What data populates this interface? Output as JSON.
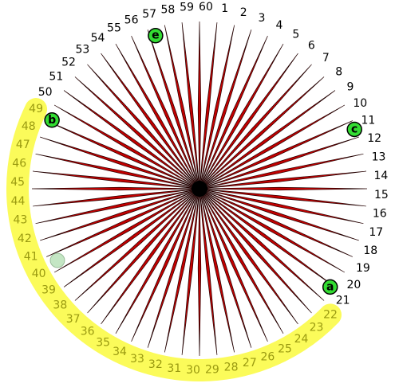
{
  "spoke_labels": [
    "1",
    "2",
    "3",
    "4",
    "5",
    "6",
    "7",
    "8",
    "9",
    "10",
    "11",
    "12",
    "13",
    "14",
    "15",
    "16",
    "17",
    "18",
    "19",
    "20",
    "21",
    "22",
    "23",
    "24",
    "25",
    "26",
    "27",
    "28",
    "29",
    "30",
    "31",
    "32",
    "33",
    "34",
    "35",
    "36",
    "37",
    "38",
    "39",
    "40",
    "41",
    "42",
    "43",
    "44",
    "45",
    "46",
    "47",
    "48",
    "49",
    "50",
    "51",
    "52",
    "53",
    "54",
    "55",
    "56",
    "57",
    "58",
    "59",
    "60"
  ],
  "markers": [
    {
      "label": "a"
    },
    {
      "label": "b"
    },
    {
      "label": "c"
    },
    {
      "label": "e"
    }
  ]
}
